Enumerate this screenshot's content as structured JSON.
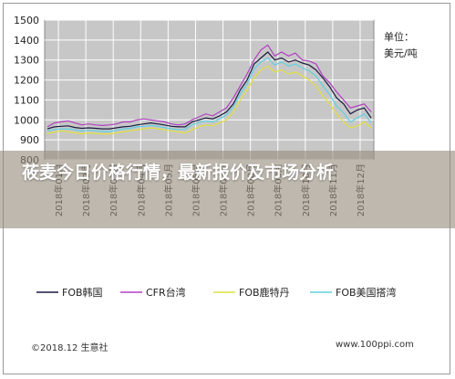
{
  "chart_data": {
    "type": "line",
    "unit_label": [
      "单位：",
      "美元/吨"
    ],
    "ylim": [
      800,
      1500
    ],
    "yticks": [
      800,
      900,
      1000,
      1100,
      1200,
      1300,
      1400,
      1500
    ],
    "xticks": [
      "2018年01月",
      "2018年02月",
      "2018年03月",
      "2018年04月",
      "2018年05月",
      "2018年06月",
      "2018年07月",
      "2018年08月",
      "2018年09月",
      "2018年10月",
      "2018年11月",
      "2018年12月"
    ],
    "grid": true,
    "legend_position": "bottom",
    "series": [
      {
        "name": "FOB韩国",
        "color": "#1a1a40",
        "values": [
          955,
          965,
          968,
          970,
          962,
          958,
          960,
          958,
          955,
          955,
          960,
          965,
          968,
          975,
          980,
          985,
          980,
          975,
          968,
          965,
          965,
          990,
          1000,
          1010,
          1005,
          1020,
          1040,
          1080,
          1150,
          1200,
          1280,
          1310,
          1340,
          1300,
          1310,
          1290,
          1300,
          1285,
          1275,
          1250,
          1210,
          1165,
          1110,
          1080,
          1030,
          1050,
          1060,
          1010
        ]
      },
      {
        "name": "CFR台湾",
        "color": "#b040c0",
        "values": [
          965,
          985,
          990,
          995,
          985,
          975,
          980,
          975,
          972,
          975,
          980,
          990,
          990,
          1000,
          1005,
          1000,
          995,
          990,
          980,
          975,
          980,
          1000,
          1015,
          1030,
          1020,
          1040,
          1060,
          1110,
          1170,
          1230,
          1300,
          1350,
          1375,
          1320,
          1340,
          1320,
          1335,
          1300,
          1295,
          1280,
          1220,
          1185,
          1140,
          1100,
          1060,
          1070,
          1080,
          1040
        ]
      },
      {
        "name": "FOB鹿特丹",
        "color": "#e0e040",
        "values": [
          930,
          940,
          945,
          940,
          935,
          930,
          935,
          932,
          930,
          930,
          935,
          940,
          945,
          950,
          955,
          960,
          955,
          950,
          945,
          940,
          935,
          950,
          965,
          975,
          970,
          985,
          1000,
          1040,
          1100,
          1150,
          1210,
          1250,
          1270,
          1240,
          1250,
          1230,
          1240,
          1220,
          1200,
          1170,
          1120,
          1080,
          1030,
          990,
          960,
          970,
          990,
          960
        ]
      },
      {
        "name": "FOB美国搭湾",
        "color": "#60d0e0",
        "values": [
          945,
          952,
          955,
          955,
          950,
          945,
          948,
          945,
          942,
          942,
          948,
          955,
          958,
          965,
          968,
          972,
          968,
          962,
          955,
          952,
          952,
          975,
          988,
          995,
          990,
          1005,
          1025,
          1065,
          1130,
          1180,
          1255,
          1290,
          1310,
          1275,
          1290,
          1270,
          1280,
          1260,
          1245,
          1220,
          1170,
          1125,
          1070,
          1035,
          990,
          1010,
          1030,
          985
        ]
      }
    ]
  },
  "banner": {
    "title": "莜麦今日价格行情，最新报价及市场分析"
  },
  "footer": {
    "copyright": "©2018.12 生意社",
    "site": "www.100ppi.com"
  }
}
